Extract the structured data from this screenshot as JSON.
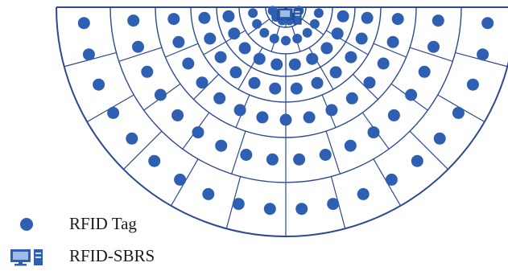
{
  "diagram": {
    "ring_count": 7,
    "ring_segments": [
      4,
      5,
      6,
      6,
      8,
      10,
      12
    ],
    "tags_per_ring": [
      6,
      9,
      10,
      12,
      15,
      18,
      20
    ],
    "line_color": "#2d4a8f",
    "tag_color": "#2e5fb3",
    "reader_color": "#2e5fb3"
  },
  "legend": {
    "items": [
      {
        "icon": "tag-dot-icon",
        "label": "RFID Tag"
      },
      {
        "icon": "computer-reader-icon",
        "label": "RFID-SBRS"
      }
    ]
  }
}
